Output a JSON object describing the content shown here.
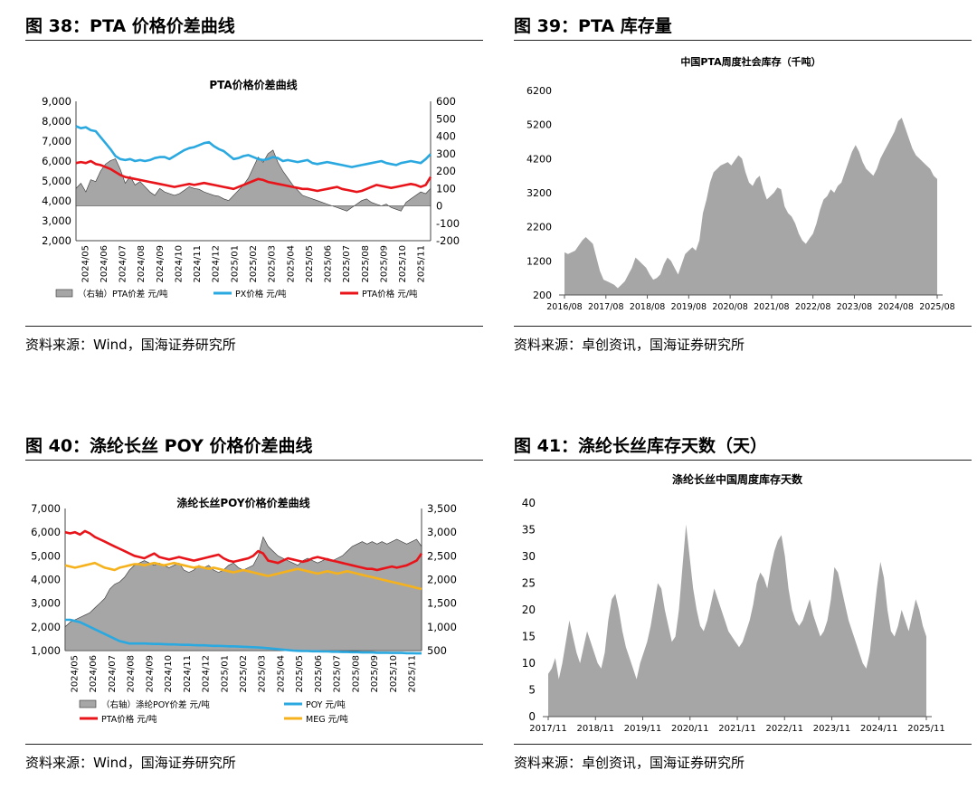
{
  "figures": [
    {
      "title": "图 38：PTA 价格价差曲线",
      "source": "资料来源：Wind，国海证券研究所",
      "chart_data": {
        "type": "line",
        "title": "PTA价格价差曲线",
        "x_labels": [
          "2024/05",
          "2024/06",
          "2024/07",
          "2024/08",
          "2024/09",
          "2024/10",
          "2024/11",
          "2024/12",
          "2025/01",
          "2025/02",
          "2025/03",
          "2025/04",
          "2025/05",
          "2025/06",
          "2025/07",
          "2025/08",
          "2025/09",
          "2025/10",
          "2025/11"
        ],
        "y_left": {
          "min": 2000,
          "max": 9000,
          "ticks": [
            "2,000",
            "3,000",
            "4,000",
            "5,000",
            "6,000",
            "7,000",
            "8,000",
            "9,000"
          ]
        },
        "y_right": {
          "min": -200,
          "max": 600,
          "ticks": [
            "-200",
            "-100",
            "0",
            "100",
            "200",
            "300",
            "400",
            "500",
            "600"
          ]
        },
        "series": [
          {
            "name": "（右轴）PTA价差  元/吨",
            "kind": "area",
            "axis": "right",
            "color": "#a6a6a6",
            "values": [
              100,
              130,
              80,
              150,
              140,
              200,
              240,
              260,
              270,
              210,
              130,
              170,
              120,
              140,
              110,
              80,
              60,
              100,
              80,
              70,
              60,
              70,
              90,
              110,
              100,
              95,
              80,
              70,
              60,
              55,
              40,
              30,
              60,
              90,
              120,
              160,
              220,
              280,
              250,
              300,
              320,
              250,
              200,
              160,
              120,
              90,
              60,
              50,
              40,
              30,
              20,
              10,
              0,
              -10,
              -20,
              -30,
              -10,
              10,
              30,
              40,
              20,
              10,
              0,
              10,
              -10,
              -20,
              -30,
              20,
              40,
              60,
              80,
              70,
              100
            ]
          },
          {
            "name": "PX价格  元/吨",
            "kind": "line",
            "axis": "left",
            "color": "#2aa8e0",
            "values": [
              7750,
              7650,
              7700,
              7550,
              7500,
              7200,
              6900,
              6600,
              6250,
              6100,
              6050,
              6100,
              6000,
              6050,
              6000,
              6050,
              6150,
              6200,
              6200,
              6100,
              6250,
              6400,
              6550,
              6650,
              6700,
              6800,
              6900,
              6950,
              6750,
              6600,
              6500,
              6300,
              6100,
              6150,
              6250,
              6300,
              6200,
              6100,
              6050,
              6100,
              6200,
              6150,
              6000,
              6050,
              6000,
              5950,
              6000,
              6050,
              5900,
              5850,
              5900,
              5950,
              5900,
              5850,
              5800,
              5750,
              5700,
              5750,
              5800,
              5850,
              5900,
              5950,
              6000,
              5900,
              5850,
              5800,
              5900,
              5950,
              6000,
              5950,
              5900,
              6100,
              6350
            ]
          },
          {
            "name": "PTA价格  元/吨",
            "kind": "line",
            "axis": "left",
            "color": "#e8141a",
            "values": [
              5900,
              5950,
              5900,
              6000,
              5850,
              5800,
              5700,
              5600,
              5450,
              5300,
              5200,
              5150,
              5100,
              5050,
              5000,
              4950,
              4900,
              4850,
              4800,
              4750,
              4700,
              4750,
              4800,
              4850,
              4800,
              4850,
              4900,
              4850,
              4800,
              4750,
              4700,
              4650,
              4600,
              4700,
              4800,
              4900,
              5000,
              5100,
              5050,
              4950,
              4900,
              4850,
              4800,
              4750,
              4700,
              4650,
              4600,
              4600,
              4550,
              4500,
              4550,
              4600,
              4650,
              4700,
              4600,
              4550,
              4500,
              4450,
              4500,
              4600,
              4700,
              4800,
              4750,
              4700,
              4650,
              4700,
              4750,
              4800,
              4850,
              4800,
              4700,
              4800,
              5200
            ]
          }
        ],
        "legend_placement": "bottom"
      }
    },
    {
      "title": "图 39：PTA 库存量",
      "source": "资料来源：卓创资讯，国海证券研究所",
      "chart_data": {
        "type": "area",
        "title": "中国PTA周度社会库存（千吨）",
        "x_labels": [
          "2016/08",
          "2017/08",
          "2018/08",
          "2019/08",
          "2020/08",
          "2021/08",
          "2022/08",
          "2023/08",
          "2024/08",
          "2025/08"
        ],
        "y": {
          "min": 200,
          "max": 6200,
          "ticks": [
            "200",
            "1200",
            "2200",
            "3200",
            "4200",
            "5200",
            "6200"
          ]
        },
        "series": [
          {
            "name": "中国PTA周度社会库存",
            "color": "#a6a6a6",
            "values": [
              1450,
              1400,
              1450,
              1500,
              1650,
              1800,
              1900,
              1800,
              1700,
              1300,
              900,
              650,
              600,
              550,
              500,
              400,
              500,
              600,
              800,
              1000,
              1300,
              1200,
              1100,
              1000,
              800,
              650,
              700,
              800,
              1100,
              1300,
              1200,
              1000,
              800,
              1100,
              1400,
              1500,
              1600,
              1500,
              1800,
              2600,
              3000,
              3500,
              3800,
              3900,
              4000,
              4050,
              4100,
              4000,
              4150,
              4300,
              4200,
              3800,
              3500,
              3400,
              3600,
              3700,
              3300,
              3000,
              3100,
              3200,
              3350,
              3300,
              2800,
              2600,
              2500,
              2300,
              2000,
              1800,
              1700,
              1850,
              2000,
              2300,
              2700,
              3000,
              3100,
              3300,
              3200,
              3400,
              3500,
              3800,
              4100,
              4400,
              4600,
              4400,
              4100,
              3900,
              3800,
              3700,
              3900,
              4200,
              4400,
              4600,
              4800,
              5000,
              5300,
              5400,
              5100,
              4800,
              4500,
              4300,
              4200,
              4100,
              4000,
              3900,
              3700,
              3600
            ]
          }
        ]
      }
    },
    {
      "title": "图 40：涤纶长丝 POY 价格价差曲线",
      "source": "资料来源：Wind，国海证券研究所",
      "chart_data": {
        "type": "line",
        "title": "涤纶长丝POY价格价差曲线",
        "x_labels": [
          "2024/05",
          "2024/06",
          "2024/07",
          "2024/08",
          "2024/09",
          "2024/10",
          "2024/11",
          "2024/12",
          "2025/01",
          "2025/02",
          "2025/03",
          "2025/04",
          "2025/05",
          "2025/06",
          "2025/07",
          "2025/08",
          "2025/09",
          "2025/10",
          "2025/11"
        ],
        "y_left": {
          "min": 1000,
          "max": 7000,
          "ticks": [
            "1,000",
            "2,000",
            "3,000",
            "4,000",
            "5,000",
            "6,000",
            "7,000"
          ]
        },
        "y_right": {
          "min": 500,
          "max": 3500,
          "ticks": [
            "500",
            "1,000",
            "1,500",
            "2,000",
            "2,500",
            "3,000",
            "3,500"
          ]
        },
        "series": [
          {
            "name": "（右轴）涤纶POY价差  元/吨",
            "kind": "area",
            "axis": "right",
            "color": "#a6a6a6",
            "values": [
              1000,
              1100,
              1150,
              1200,
              1250,
              1300,
              1400,
              1500,
              1600,
              1800,
              1900,
              1950,
              2050,
              2200,
              2300,
              2350,
              2400,
              2350,
              2300,
              2350,
              2300,
              2250,
              2300,
              2350,
              2200,
              2150,
              2200,
              2300,
              2250,
              2300,
              2200,
              2150,
              2200,
              2300,
              2350,
              2250,
              2200,
              2250,
              2300,
              2500,
              2900,
              2700,
              2600,
              2500,
              2450,
              2400,
              2350,
              2300,
              2400,
              2450,
              2400,
              2350,
              2400,
              2450,
              2400,
              2450,
              2500,
              2600,
              2700,
              2750,
              2800,
              2750,
              2800,
              2750,
              2800,
              2750,
              2800,
              2850,
              2800,
              2750,
              2800,
              2850,
              2700
            ]
          },
          {
            "name": "POY  元/吨",
            "kind": "line",
            "axis": "left",
            "color": "#2aa8e0",
            "values": [
              2300,
              2300,
              2250,
              2200,
              2100,
              2000,
              1900,
              1800,
              1700,
              1600,
              1500,
              1400,
              1350,
              1300,
              1300,
              1300,
              1300,
              1290,
              1280,
              1280,
              1270,
              1260,
              1260,
              1250,
              1240,
              1240,
              1230,
              1220,
              1220,
              1210,
              1200,
              1200,
              1190,
              1180,
              1180,
              1170,
              1160,
              1150,
              1140,
              1130,
              1120,
              1100,
              1080,
              1060,
              1040,
              1020,
              1000,
              990,
              980,
              980,
              970,
              970,
              960,
              960,
              950,
              950,
              940,
              940,
              930,
              930,
              920,
              920,
              920,
              910,
              910,
              910,
              900,
              900,
              900,
              890,
              890,
              880,
              880
            ]
          },
          {
            "name": "PTA价格  元/吨",
            "kind": "line",
            "axis": "left",
            "color": "#e8141a",
            "values": [
              6000,
              5950,
              6000,
              5900,
              6050,
              5950,
              5800,
              5700,
              5600,
              5500,
              5400,
              5300,
              5200,
              5100,
              5000,
              4950,
              4900,
              5000,
              5100,
              4950,
              4900,
              4850,
              4900,
              4950,
              4900,
              4850,
              4800,
              4850,
              4900,
              4950,
              5000,
              5050,
              4900,
              4800,
              4750,
              4800,
              4850,
              4900,
              5000,
              5200,
              5100,
              4800,
              4750,
              4700,
              4800,
              4900,
              4850,
              4800,
              4750,
              4800,
              4900,
              4950,
              4900,
              4850,
              4800,
              4750,
              4700,
              4650,
              4600,
              4550,
              4500,
              4450,
              4450,
              4400,
              4450,
              4500,
              4550,
              4500,
              4550,
              4600,
              4700,
              4800,
              5100
            ]
          },
          {
            "name": "MEG  元/吨",
            "kind": "line",
            "axis": "left",
            "color": "#f5b21c",
            "values": [
              4600,
              4550,
              4500,
              4550,
              4600,
              4650,
              4700,
              4600,
              4500,
              4450,
              4400,
              4500,
              4550,
              4600,
              4650,
              4650,
              4600,
              4650,
              4700,
              4650,
              4600,
              4650,
              4700,
              4650,
              4600,
              4550,
              4500,
              4550,
              4500,
              4450,
              4500,
              4450,
              4400,
              4350,
              4300,
              4350,
              4400,
              4350,
              4300,
              4250,
              4200,
              4150,
              4200,
              4250,
              4300,
              4350,
              4400,
              4450,
              4400,
              4350,
              4300,
              4250,
              4300,
              4350,
              4300,
              4250,
              4300,
              4350,
              4300,
              4250,
              4200,
              4150,
              4100,
              4050,
              4000,
              3950,
              3900,
              3850,
              3800,
              3750,
              3700,
              3650,
              3600
            ]
          }
        ],
        "legend_placement": "bottom"
      }
    },
    {
      "title": "图 41：涤纶长丝库存天数（天）",
      "source": "资料来源：卓创资讯，国海证券研究所",
      "chart_data": {
        "type": "area",
        "title": "涤纶长丝中国周度库存天数",
        "x_labels": [
          "2017/11",
          "2018/11",
          "2019/11",
          "2020/11",
          "2021/11",
          "2022/11",
          "2023/11",
          "2024/11",
          "2025/11"
        ],
        "y": {
          "min": 0,
          "max": 40,
          "ticks": [
            "0",
            "5",
            "10",
            "15",
            "20",
            "25",
            "30",
            "35",
            "40"
          ]
        },
        "series": [
          {
            "name": "涤纶长丝中国周度库存天数",
            "color": "#a6a6a6",
            "values": [
              8,
              9,
              11,
              7,
              10,
              14,
              18,
              15,
              12,
              10,
              13,
              16,
              14,
              12,
              10,
              9,
              12,
              18,
              22,
              23,
              20,
              16,
              13,
              11,
              9,
              7,
              10,
              12,
              14,
              17,
              21,
              25,
              24,
              20,
              17,
              14,
              15,
              20,
              28,
              36,
              30,
              24,
              20,
              17,
              16,
              18,
              21,
              24,
              22,
              20,
              18,
              16,
              15,
              14,
              13,
              14,
              16,
              18,
              21,
              25,
              27,
              26,
              24,
              28,
              31,
              33,
              34,
              30,
              24,
              20,
              18,
              17,
              18,
              20,
              22,
              19,
              17,
              15,
              16,
              18,
              22,
              28,
              27,
              24,
              21,
              18,
              16,
              14,
              12,
              10,
              9,
              12,
              18,
              24,
              29,
              26,
              20,
              16,
              15,
              17,
              20,
              18,
              16,
              19,
              22,
              20,
              17,
              15
            ]
          }
        ]
      }
    }
  ]
}
